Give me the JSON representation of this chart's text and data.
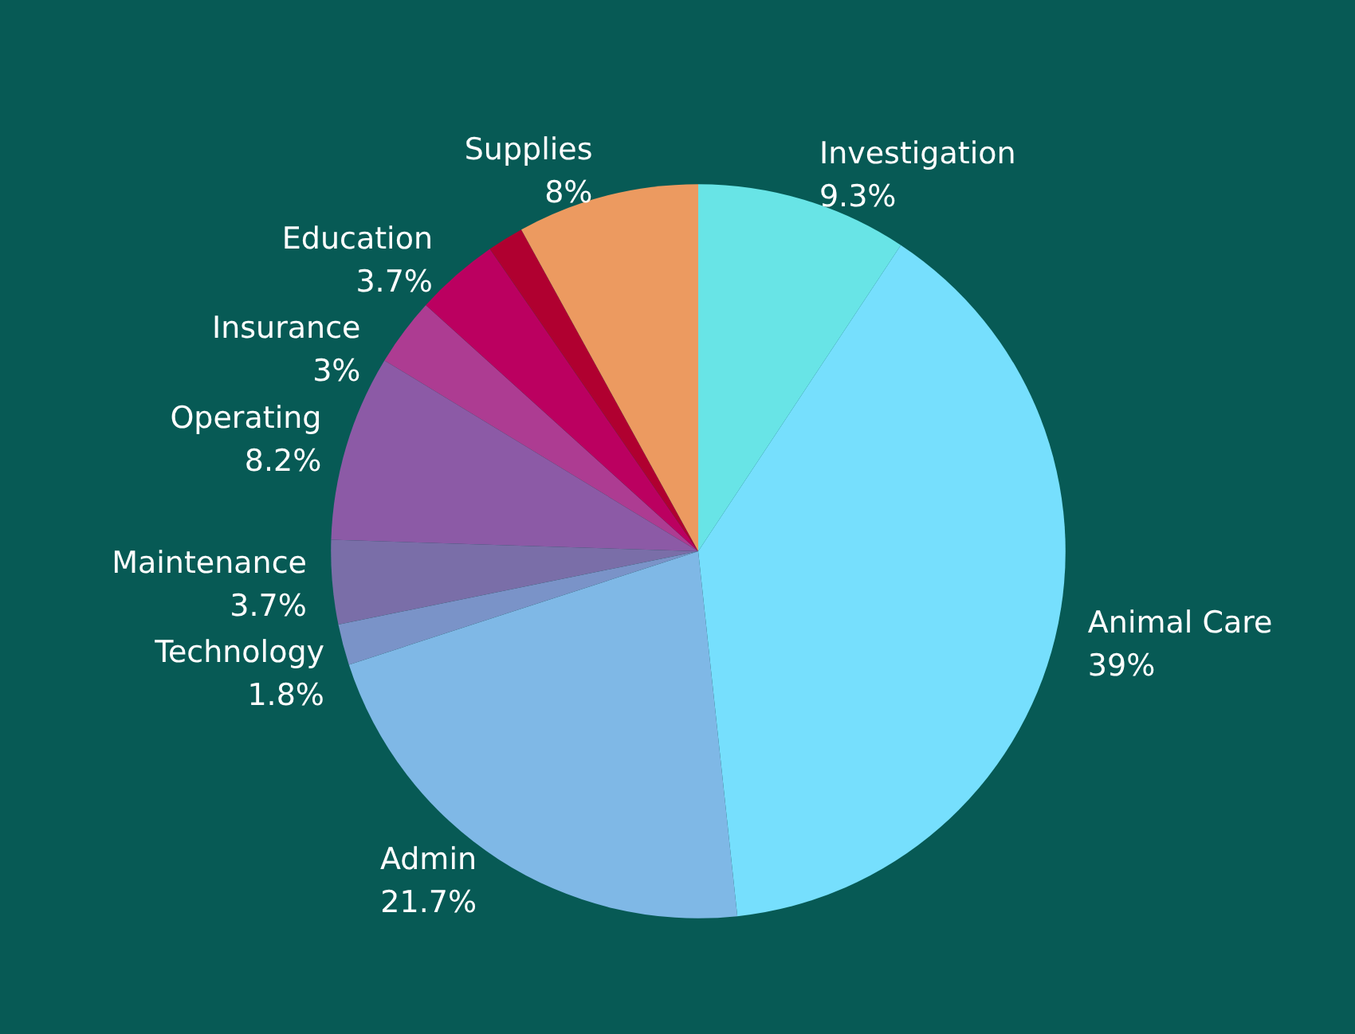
{
  "chart_data": {
    "type": "pie",
    "categories": [
      "Investigation",
      "Animal Care",
      "Admin",
      "Technology",
      "Maintenance",
      "Operating",
      "Insurance",
      "Education",
      null,
      "Supplies"
    ],
    "values": [
      9.3,
      39,
      21.7,
      1.8,
      3.7,
      8.2,
      3,
      3.7,
      1.6,
      8
    ],
    "value_labels": [
      "9.3%",
      "39%",
      "21.7%",
      "1.8%",
      "3.7%",
      "8.2%",
      "3%",
      "3.7%",
      null,
      "8%"
    ],
    "colors": [
      "#68e4e6",
      "#76dffd",
      "#7fb8e6",
      "#7a93c8",
      "#7a6ea8",
      "#8c5aa6",
      "#ad3c92",
      "#bb0060",
      "#b00030",
      "#ec9a60"
    ],
    "legend": false
  }
}
